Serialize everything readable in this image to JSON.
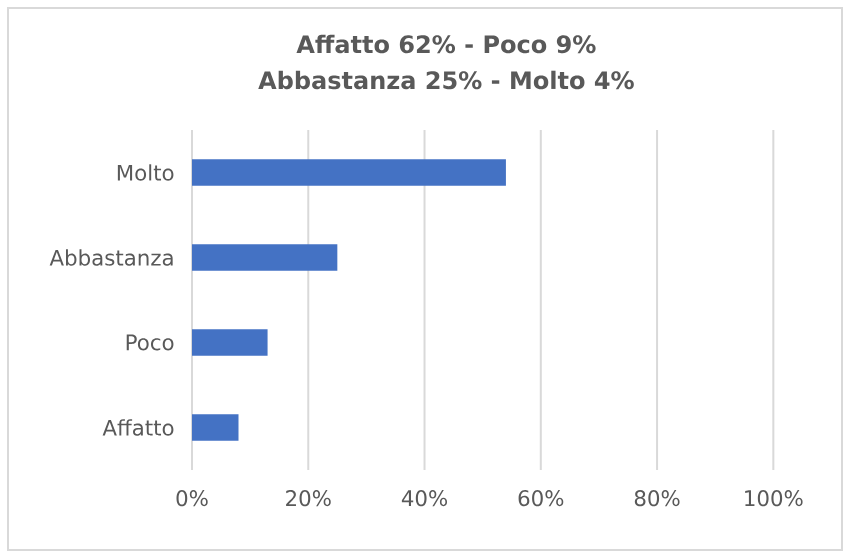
{
  "chart_data": {
    "type": "bar",
    "orientation": "horizontal",
    "title": "Affatto 62% - Poco 9%",
    "subtitle": "Abbastanza 25% - Molto 4%",
    "categories": [
      "Molto",
      "Abbastanza",
      "Poco",
      "Affatto"
    ],
    "values": [
      54,
      25,
      13,
      8
    ],
    "color": "#4472c4",
    "xlim": [
      0,
      100
    ],
    "xticks": [
      {
        "value": 0,
        "label": "0%"
      },
      {
        "value": 20,
        "label": "20%"
      },
      {
        "value": 40,
        "label": "40%"
      },
      {
        "value": 60,
        "label": "60%"
      },
      {
        "value": 80,
        "label": "80%"
      },
      {
        "value": 100,
        "label": "100%"
      }
    ],
    "grid": "x"
  }
}
